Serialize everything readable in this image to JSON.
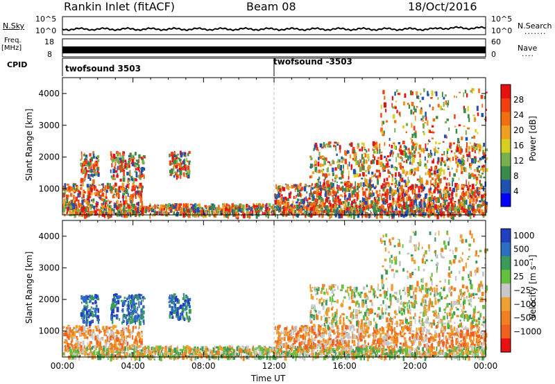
{
  "header": {
    "station": "Rankin Inlet (fitACF)",
    "beam": "Beam 08",
    "date": "18/Oct/2016"
  },
  "left_labels": {
    "nsky": "N.Sky",
    "freq_line1": "Freq.",
    "freq_line2": "[MHz]",
    "cpid": "CPID"
  },
  "right_labels": {
    "nsearch": "N.Search",
    "nave": "Nave"
  },
  "noise_panel": {
    "y_ticks_left": [
      "10^5",
      "10^0"
    ],
    "y_ticks_right": [
      "10^5",
      "10^0"
    ]
  },
  "freq_panel": {
    "y_ticks_left": [
      "18",
      "8"
    ],
    "y_ticks_right": [
      "60",
      "0"
    ]
  },
  "cpid_panel": {
    "segments": [
      {
        "label": "twofsound 3503",
        "start_hour": 0
      },
      {
        "label": "twofsound -3503",
        "start_hour": 12
      }
    ]
  },
  "colors": {
    "power_scale": [
      "#0000ff",
      "#2050b0",
      "#3a8a4a",
      "#78b050",
      "#d8d020",
      "#f0a020",
      "#f07010",
      "#f04010",
      "#e81010"
    ],
    "velocity_scale": [
      "#2040c0",
      "#2c6ec0",
      "#3a9a5a",
      "#66c040",
      "#c8c8c8",
      "#f0a030",
      "#f08020",
      "#f06020",
      "#e81010"
    ]
  },
  "chart_data": [
    {
      "type": "heatmap",
      "name": "power",
      "xlabel": "",
      "ylabel": "Slant Range [km]",
      "xlim": [
        0,
        24
      ],
      "ylim": [
        180,
        4500
      ],
      "x_ticks": [],
      "y_ticks": [
        1000,
        2000,
        3000,
        4000
      ],
      "colorbar": {
        "label": "Power [dB]",
        "range": [
          0,
          32
        ],
        "ticks": [
          4,
          8,
          12,
          16,
          20,
          24,
          28
        ]
      }
    },
    {
      "type": "heatmap",
      "name": "velocity",
      "xlabel": "Time UT",
      "ylabel": "Slant Range [km]",
      "xlim": [
        0,
        24
      ],
      "ylim": [
        180,
        4500
      ],
      "x_ticks": [
        "00:00",
        "04:00",
        "08:00",
        "12:00",
        "16:00",
        "20:00",
        "00:00"
      ],
      "y_ticks": [
        1000,
        2000,
        3000,
        4000
      ],
      "colorbar": {
        "label": "Velocity [m s⁻¹]",
        "ticks": [
          "1000",
          "500",
          "100",
          "25",
          "−25",
          "−100",
          "−500",
          "−1000"
        ]
      }
    }
  ]
}
